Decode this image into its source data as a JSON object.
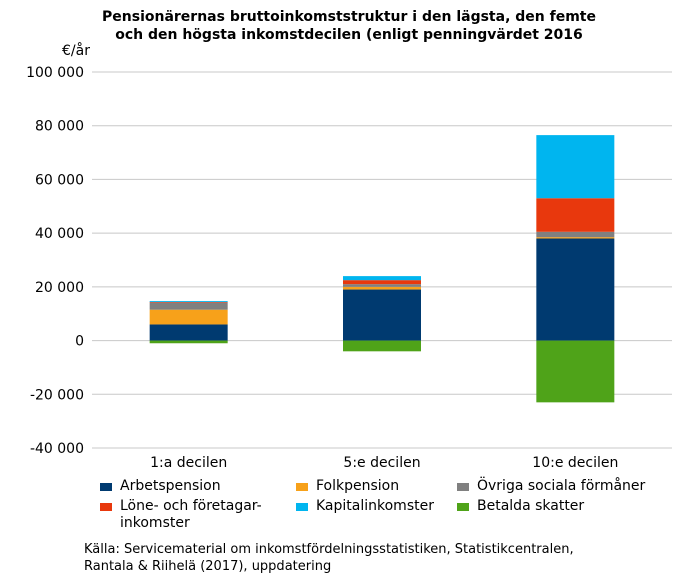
{
  "chart_data": {
    "type": "bar",
    "stacked": true,
    "title_lines": [
      "Pensionärernas bruttoinkomststruktur i den lägsta, den femte",
      "och den högsta inkomstdecilen (enligt penningvärdet 2016"
    ],
    "ylabel": "€/år",
    "ylim": [
      -40000,
      100000
    ],
    "yticks": [
      -40000,
      -20000,
      0,
      20000,
      40000,
      60000,
      80000,
      100000
    ],
    "ytick_labels": [
      "-40 000",
      "-20 000",
      "0",
      "20 000",
      "40 000",
      "60 000",
      "80 000",
      "100 000"
    ],
    "grid": true,
    "legend_position": "bottom",
    "categories": [
      "1:a decilen",
      "5:e decilen",
      "10:e decilen"
    ],
    "series": [
      {
        "name": "Arbetspension",
        "color": "#003a70",
        "values": [
          6000,
          19000,
          38000
        ]
      },
      {
        "name": "Folkpension",
        "color": "#f7a11a",
        "values": [
          5500,
          1000,
          500
        ]
      },
      {
        "name": "Övriga sociala förmåner",
        "color": "#808080",
        "values": [
          2500,
          1000,
          2000
        ]
      },
      {
        "name": "Löne- och företagar-\ninkomster",
        "color": "#e8380d",
        "values": [
          300,
          1500,
          12500
        ]
      },
      {
        "name": "Kapitalinkomster",
        "color": "#00b5ef",
        "values": [
          400,
          1500,
          23500
        ]
      },
      {
        "name": "Betalda skatter",
        "color": "#4fa319",
        "values": [
          -1000,
          -4000,
          -23000
        ]
      }
    ]
  },
  "source_lines": [
    "Källa: Servicematerial om inkomstfördelningsstatistiken, Statistikcentralen,",
    "Rantala & Riihelä (2017), uppdatering"
  ]
}
